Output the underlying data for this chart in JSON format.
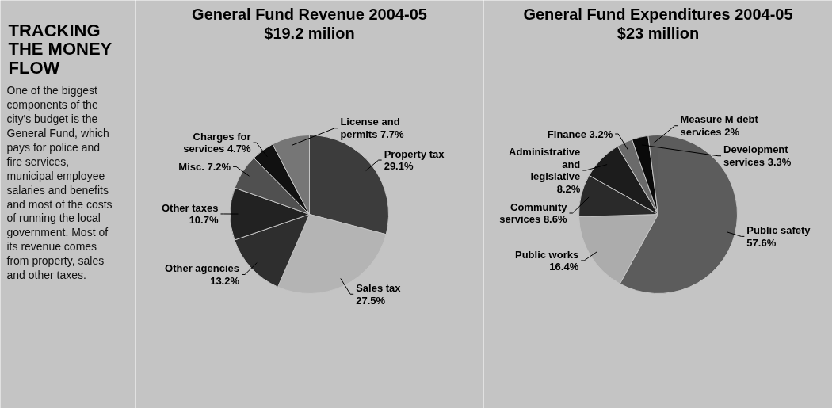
{
  "chart_data": [
    {
      "type": "other",
      "title": "TRACKING THE MONEY FLOW",
      "annotations": [
        "One of the biggest components of the city's budget is the General Fund, which pays for police and fire services, municipal employee salaries and benefits and most of the costs of running the local government. Most of its revenue comes from property, sales and other taxes."
      ]
    },
    {
      "type": "pie",
      "title": "General Fund Revenue 2004-05",
      "subtitle": "$19.2 milion",
      "categories": [
        "Property tax",
        "Sales tax",
        "Other agencies",
        "Other taxes",
        "Misc.",
        "Charges for services",
        "License and permits"
      ],
      "values": [
        29.1,
        27.5,
        13.2,
        10.7,
        7.2,
        4.7,
        7.7
      ],
      "value_labels": [
        "29.1%",
        "27.5%",
        "13.2%",
        "10.7%",
        "7.2%",
        "4.7%",
        "7.7%"
      ],
      "colors": [
        "#3c3c3c",
        "#b4b4b4",
        "#2e2e2e",
        "#222222",
        "#505050",
        "#111111",
        "#767676"
      ]
    },
    {
      "type": "pie",
      "title": "General Fund Expenditures 2004-05",
      "subtitle": "$23 million",
      "categories": [
        "Public safety",
        "Public works",
        "Community services",
        "Administrative and legislative",
        "Finance",
        "Development services",
        "Measure M debt services"
      ],
      "values": [
        57.6,
        16.4,
        8.6,
        8.2,
        3.2,
        3.3,
        2
      ],
      "value_labels": [
        "57.6%",
        "16.4%",
        "8.6%",
        "8.2%",
        "3.2%",
        "3.3%",
        "2%"
      ],
      "colors": [
        "#5c5c5c",
        "#acacac",
        "#2a2a2a",
        "#1c1c1c",
        "#6a6a6a",
        "#0a0a0a",
        "#5a5a5a"
      ]
    }
  ]
}
